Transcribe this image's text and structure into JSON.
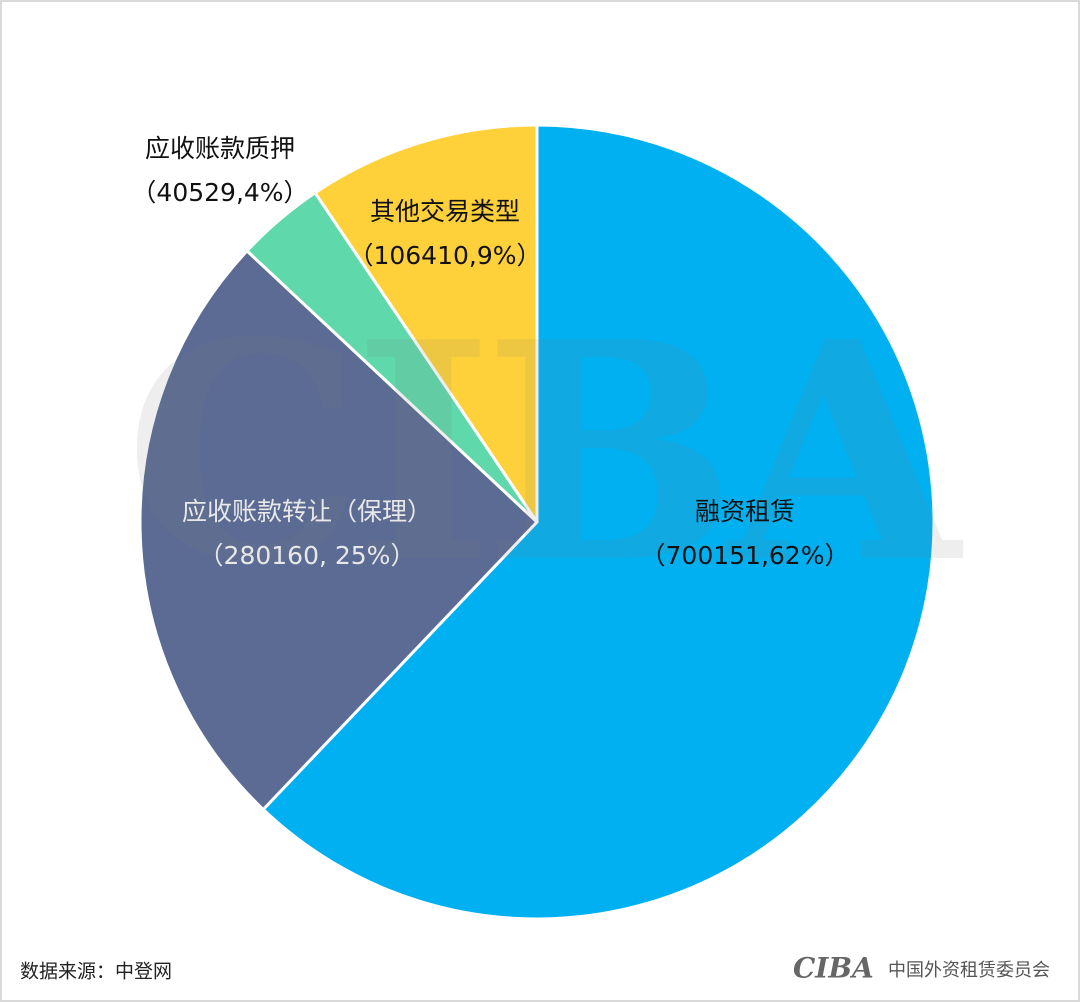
{
  "chart_data": {
    "type": "pie",
    "categories": [
      "融资租赁",
      "应收账款转让（保理）",
      "应收账款质押",
      "其他交易类型"
    ],
    "values": [
      700151,
      280160,
      40529,
      106410
    ],
    "value_labels": [
      "（700151,62%）",
      "（280160, 25%）",
      "（40529,4%）",
      "（106410,9%）"
    ],
    "colors": [
      "#00b0f0",
      "#5b6b94",
      "#5fd9ab",
      "#fed13a"
    ],
    "watermark": "CIBA",
    "source": "数据来源：中登网",
    "footer_logo": "CIBA",
    "footer_org": "中国外资租赁委员会"
  }
}
